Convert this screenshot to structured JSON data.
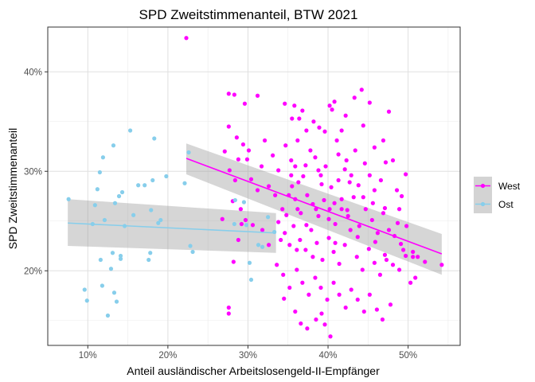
{
  "chart_data": {
    "type": "scatter",
    "title": "SPD Zweitstimmenanteil, BTW 2021",
    "xlabel": "Anteil ausländischer Arbeitslosengeld-II-Empfänger",
    "ylabel": "SPD Zweitstimmenanteil",
    "xlim": [
      0.05,
      0.565
    ],
    "ylim": [
      0.125,
      0.445
    ],
    "x_ticks": [
      0.1,
      0.2,
      0.3,
      0.4,
      0.5
    ],
    "x_tick_labels": [
      "10%",
      "20%",
      "30%",
      "40%",
      "50%"
    ],
    "y_ticks": [
      0.2,
      0.3,
      0.4
    ],
    "y_tick_labels": [
      "20%",
      "30%",
      "40%"
    ],
    "grid": true,
    "legend_position": "right",
    "series": [
      {
        "name": "West",
        "color": "#FF00FF",
        "trend": {
          "x": [
            0.223,
            0.542
          ],
          "y": [
            0.313,
            0.217
          ],
          "ci_lower": [
            0.297,
            0.196
          ],
          "ci_upper": [
            0.328,
            0.237
          ]
        },
        "points": [
          [
            0.223,
            0.434
          ],
          [
            0.276,
            0.378
          ],
          [
            0.283,
            0.377
          ],
          [
            0.296,
            0.368
          ],
          [
            0.312,
            0.376
          ],
          [
            0.346,
            0.368
          ],
          [
            0.358,
            0.366
          ],
          [
            0.368,
            0.361
          ],
          [
            0.355,
            0.353
          ],
          [
            0.364,
            0.353
          ],
          [
            0.402,
            0.366
          ],
          [
            0.405,
            0.362
          ],
          [
            0.408,
            0.37
          ],
          [
            0.433,
            0.374
          ],
          [
            0.442,
            0.382
          ],
          [
            0.452,
            0.369
          ],
          [
            0.382,
            0.35
          ],
          [
            0.389,
            0.344
          ],
          [
            0.396,
            0.34
          ],
          [
            0.422,
            0.356
          ],
          [
            0.444,
            0.346
          ],
          [
            0.476,
            0.36
          ],
          [
            0.276,
            0.345
          ],
          [
            0.271,
            0.32
          ],
          [
            0.286,
            0.334
          ],
          [
            0.294,
            0.327
          ],
          [
            0.299,
            0.312
          ],
          [
            0.317,
            0.305
          ],
          [
            0.331,
            0.316
          ],
          [
            0.338,
            0.301
          ],
          [
            0.347,
            0.326
          ],
          [
            0.354,
            0.296
          ],
          [
            0.363,
            0.289
          ],
          [
            0.372,
            0.306
          ],
          [
            0.378,
            0.321
          ],
          [
            0.384,
            0.314
          ],
          [
            0.391,
            0.296
          ],
          [
            0.397,
            0.305
          ],
          [
            0.404,
            0.284
          ],
          [
            0.413,
            0.317
          ],
          [
            0.421,
            0.302
          ],
          [
            0.427,
            0.289
          ],
          [
            0.434,
            0.321
          ],
          [
            0.446,
            0.308
          ],
          [
            0.452,
            0.296
          ],
          [
            0.458,
            0.281
          ],
          [
            0.466,
            0.291
          ],
          [
            0.472,
            0.309
          ],
          [
            0.486,
            0.281
          ],
          [
            0.492,
            0.275
          ],
          [
            0.497,
            0.297
          ],
          [
            0.288,
            0.312
          ],
          [
            0.304,
            0.292
          ],
          [
            0.312,
            0.281
          ],
          [
            0.326,
            0.285
          ],
          [
            0.334,
            0.276
          ],
          [
            0.343,
            0.262
          ],
          [
            0.351,
            0.276
          ],
          [
            0.359,
            0.272
          ],
          [
            0.366,
            0.258
          ],
          [
            0.374,
            0.276
          ],
          [
            0.381,
            0.267
          ],
          [
            0.388,
            0.255
          ],
          [
            0.395,
            0.271
          ],
          [
            0.402,
            0.262
          ],
          [
            0.409,
            0.247
          ],
          [
            0.417,
            0.262
          ],
          [
            0.425,
            0.255
          ],
          [
            0.432,
            0.274
          ],
          [
            0.439,
            0.245
          ],
          [
            0.447,
            0.262
          ],
          [
            0.455,
            0.251
          ],
          [
            0.462,
            0.238
          ],
          [
            0.469,
            0.258
          ],
          [
            0.476,
            0.241
          ],
          [
            0.483,
            0.235
          ],
          [
            0.491,
            0.227
          ],
          [
            0.498,
            0.245
          ],
          [
            0.506,
            0.219
          ],
          [
            0.512,
            0.214
          ],
          [
            0.521,
            0.209
          ],
          [
            0.542,
            0.206
          ],
          [
            0.281,
            0.27
          ],
          [
            0.268,
            0.252
          ],
          [
            0.291,
            0.262
          ],
          [
            0.297,
            0.251
          ],
          [
            0.306,
            0.246
          ],
          [
            0.318,
            0.241
          ],
          [
            0.326,
            0.226
          ],
          [
            0.338,
            0.249
          ],
          [
            0.346,
            0.238
          ],
          [
            0.352,
            0.226
          ],
          [
            0.357,
            0.245
          ],
          [
            0.365,
            0.231
          ],
          [
            0.372,
            0.221
          ],
          [
            0.379,
            0.241
          ],
          [
            0.386,
            0.228
          ],
          [
            0.393,
            0.211
          ],
          [
            0.401,
            0.233
          ],
          [
            0.407,
            0.219
          ],
          [
            0.414,
            0.207
          ],
          [
            0.421,
            0.226
          ],
          [
            0.428,
            0.241
          ],
          [
            0.436,
            0.214
          ],
          [
            0.443,
            0.201
          ],
          [
            0.451,
            0.222
          ],
          [
            0.458,
            0.208
          ],
          [
            0.465,
            0.196
          ],
          [
            0.473,
            0.211
          ],
          [
            0.481,
            0.206
          ],
          [
            0.489,
            0.201
          ],
          [
            0.497,
            0.215
          ],
          [
            0.503,
            0.188
          ],
          [
            0.509,
            0.193
          ],
          [
            0.336,
            0.206
          ],
          [
            0.344,
            0.196
          ],
          [
            0.352,
            0.183
          ],
          [
            0.361,
            0.201
          ],
          [
            0.368,
            0.188
          ],
          [
            0.376,
            0.176
          ],
          [
            0.384,
            0.193
          ],
          [
            0.391,
            0.183
          ],
          [
            0.399,
            0.171
          ],
          [
            0.407,
            0.188
          ],
          [
            0.414,
            0.176
          ],
          [
            0.422,
            0.163
          ],
          [
            0.429,
            0.181
          ],
          [
            0.437,
            0.171
          ],
          [
            0.445,
            0.159
          ],
          [
            0.452,
            0.176
          ],
          [
            0.461,
            0.161
          ],
          [
            0.468,
            0.151
          ],
          [
            0.478,
            0.166
          ],
          [
            0.345,
            0.172
          ],
          [
            0.359,
            0.159
          ],
          [
            0.366,
            0.147
          ],
          [
            0.374,
            0.142
          ],
          [
            0.385,
            0.151
          ],
          [
            0.392,
            0.157
          ],
          [
            0.403,
            0.134
          ],
          [
            0.396,
            0.146
          ],
          [
            0.276,
            0.163
          ],
          [
            0.276,
            0.157
          ],
          [
            0.282,
            0.209
          ],
          [
            0.288,
            0.231
          ],
          [
            0.292,
            0.247
          ],
          [
            0.284,
            0.291
          ],
          [
            0.277,
            0.301
          ],
          [
            0.301,
            0.321
          ],
          [
            0.321,
            0.331
          ],
          [
            0.362,
            0.331
          ],
          [
            0.373,
            0.341
          ],
          [
            0.411,
            0.331
          ],
          [
            0.417,
            0.341
          ],
          [
            0.458,
            0.324
          ],
          [
            0.469,
            0.331
          ],
          [
            0.354,
            0.311
          ],
          [
            0.359,
            0.305
          ],
          [
            0.388,
            0.301
          ],
          [
            0.423,
            0.311
          ],
          [
            0.429,
            0.296
          ],
          [
            0.438,
            0.286
          ],
          [
            0.481,
            0.311
          ],
          [
            0.385,
            0.262
          ],
          [
            0.401,
            0.252
          ],
          [
            0.408,
            0.268
          ],
          [
            0.417,
            0.272
          ],
          [
            0.424,
            0.261
          ],
          [
            0.361,
            0.221
          ],
          [
            0.381,
            0.214
          ],
          [
            0.409,
            0.228
          ],
          [
            0.437,
            0.234
          ],
          [
            0.459,
            0.229
          ],
          [
            0.471,
            0.216
          ],
          [
            0.494,
            0.221
          ],
          [
            0.506,
            0.214
          ],
          [
            0.362,
            0.262
          ],
          [
            0.348,
            0.256
          ],
          [
            0.341,
            0.231
          ],
          [
            0.373,
            0.246
          ],
          [
            0.355,
            0.285
          ],
          [
            0.369,
            0.295
          ],
          [
            0.392,
            0.287
          ],
          [
            0.413,
            0.291
          ],
          [
            0.444,
            0.274
          ],
          [
            0.456,
            0.268
          ],
          [
            0.471,
            0.263
          ],
          [
            0.489,
            0.262
          ],
          [
            0.487,
            0.248
          ]
        ]
      },
      {
        "name": "Ost",
        "color": "#87CEEB",
        "trend": {
          "x": [
            0.075,
            0.335
          ],
          "y": [
            0.248,
            0.238
          ],
          "ci_lower": [
            0.225,
            0.218
          ],
          "ci_upper": [
            0.272,
            0.258
          ]
        },
        "points": [
          [
            0.076,
            0.272
          ],
          [
            0.096,
            0.181
          ],
          [
            0.099,
            0.17
          ],
          [
            0.106,
            0.247
          ],
          [
            0.109,
            0.266
          ],
          [
            0.112,
            0.282
          ],
          [
            0.115,
            0.299
          ],
          [
            0.116,
            0.211
          ],
          [
            0.118,
            0.185
          ],
          [
            0.119,
            0.314
          ],
          [
            0.121,
            0.251
          ],
          [
            0.125,
            0.155
          ],
          [
            0.129,
            0.202
          ],
          [
            0.131,
            0.218
          ],
          [
            0.132,
            0.326
          ],
          [
            0.133,
            0.178
          ],
          [
            0.134,
            0.268
          ],
          [
            0.136,
            0.169
          ],
          [
            0.139,
            0.275
          ],
          [
            0.141,
            0.215
          ],
          [
            0.141,
            0.212
          ],
          [
            0.143,
            0.279
          ],
          [
            0.146,
            0.245
          ],
          [
            0.153,
            0.341
          ],
          [
            0.157,
            0.256
          ],
          [
            0.163,
            0.286
          ],
          [
            0.171,
            0.286
          ],
          [
            0.176,
            0.211
          ],
          [
            0.178,
            0.218
          ],
          [
            0.179,
            0.261
          ],
          [
            0.181,
            0.291
          ],
          [
            0.183,
            0.333
          ],
          [
            0.188,
            0.248
          ],
          [
            0.191,
            0.251
          ],
          [
            0.198,
            0.295
          ],
          [
            0.221,
            0.288
          ],
          [
            0.226,
            0.319
          ],
          [
            0.228,
            0.225
          ],
          [
            0.231,
            0.219
          ],
          [
            0.284,
            0.271
          ],
          [
            0.283,
            0.247
          ],
          [
            0.295,
            0.269
          ],
          [
            0.298,
            0.246
          ],
          [
            0.302,
            0.208
          ],
          [
            0.304,
            0.191
          ],
          [
            0.313,
            0.226
          ],
          [
            0.318,
            0.224
          ],
          [
            0.325,
            0.254
          ],
          [
            0.333,
            0.239
          ]
        ]
      }
    ]
  }
}
